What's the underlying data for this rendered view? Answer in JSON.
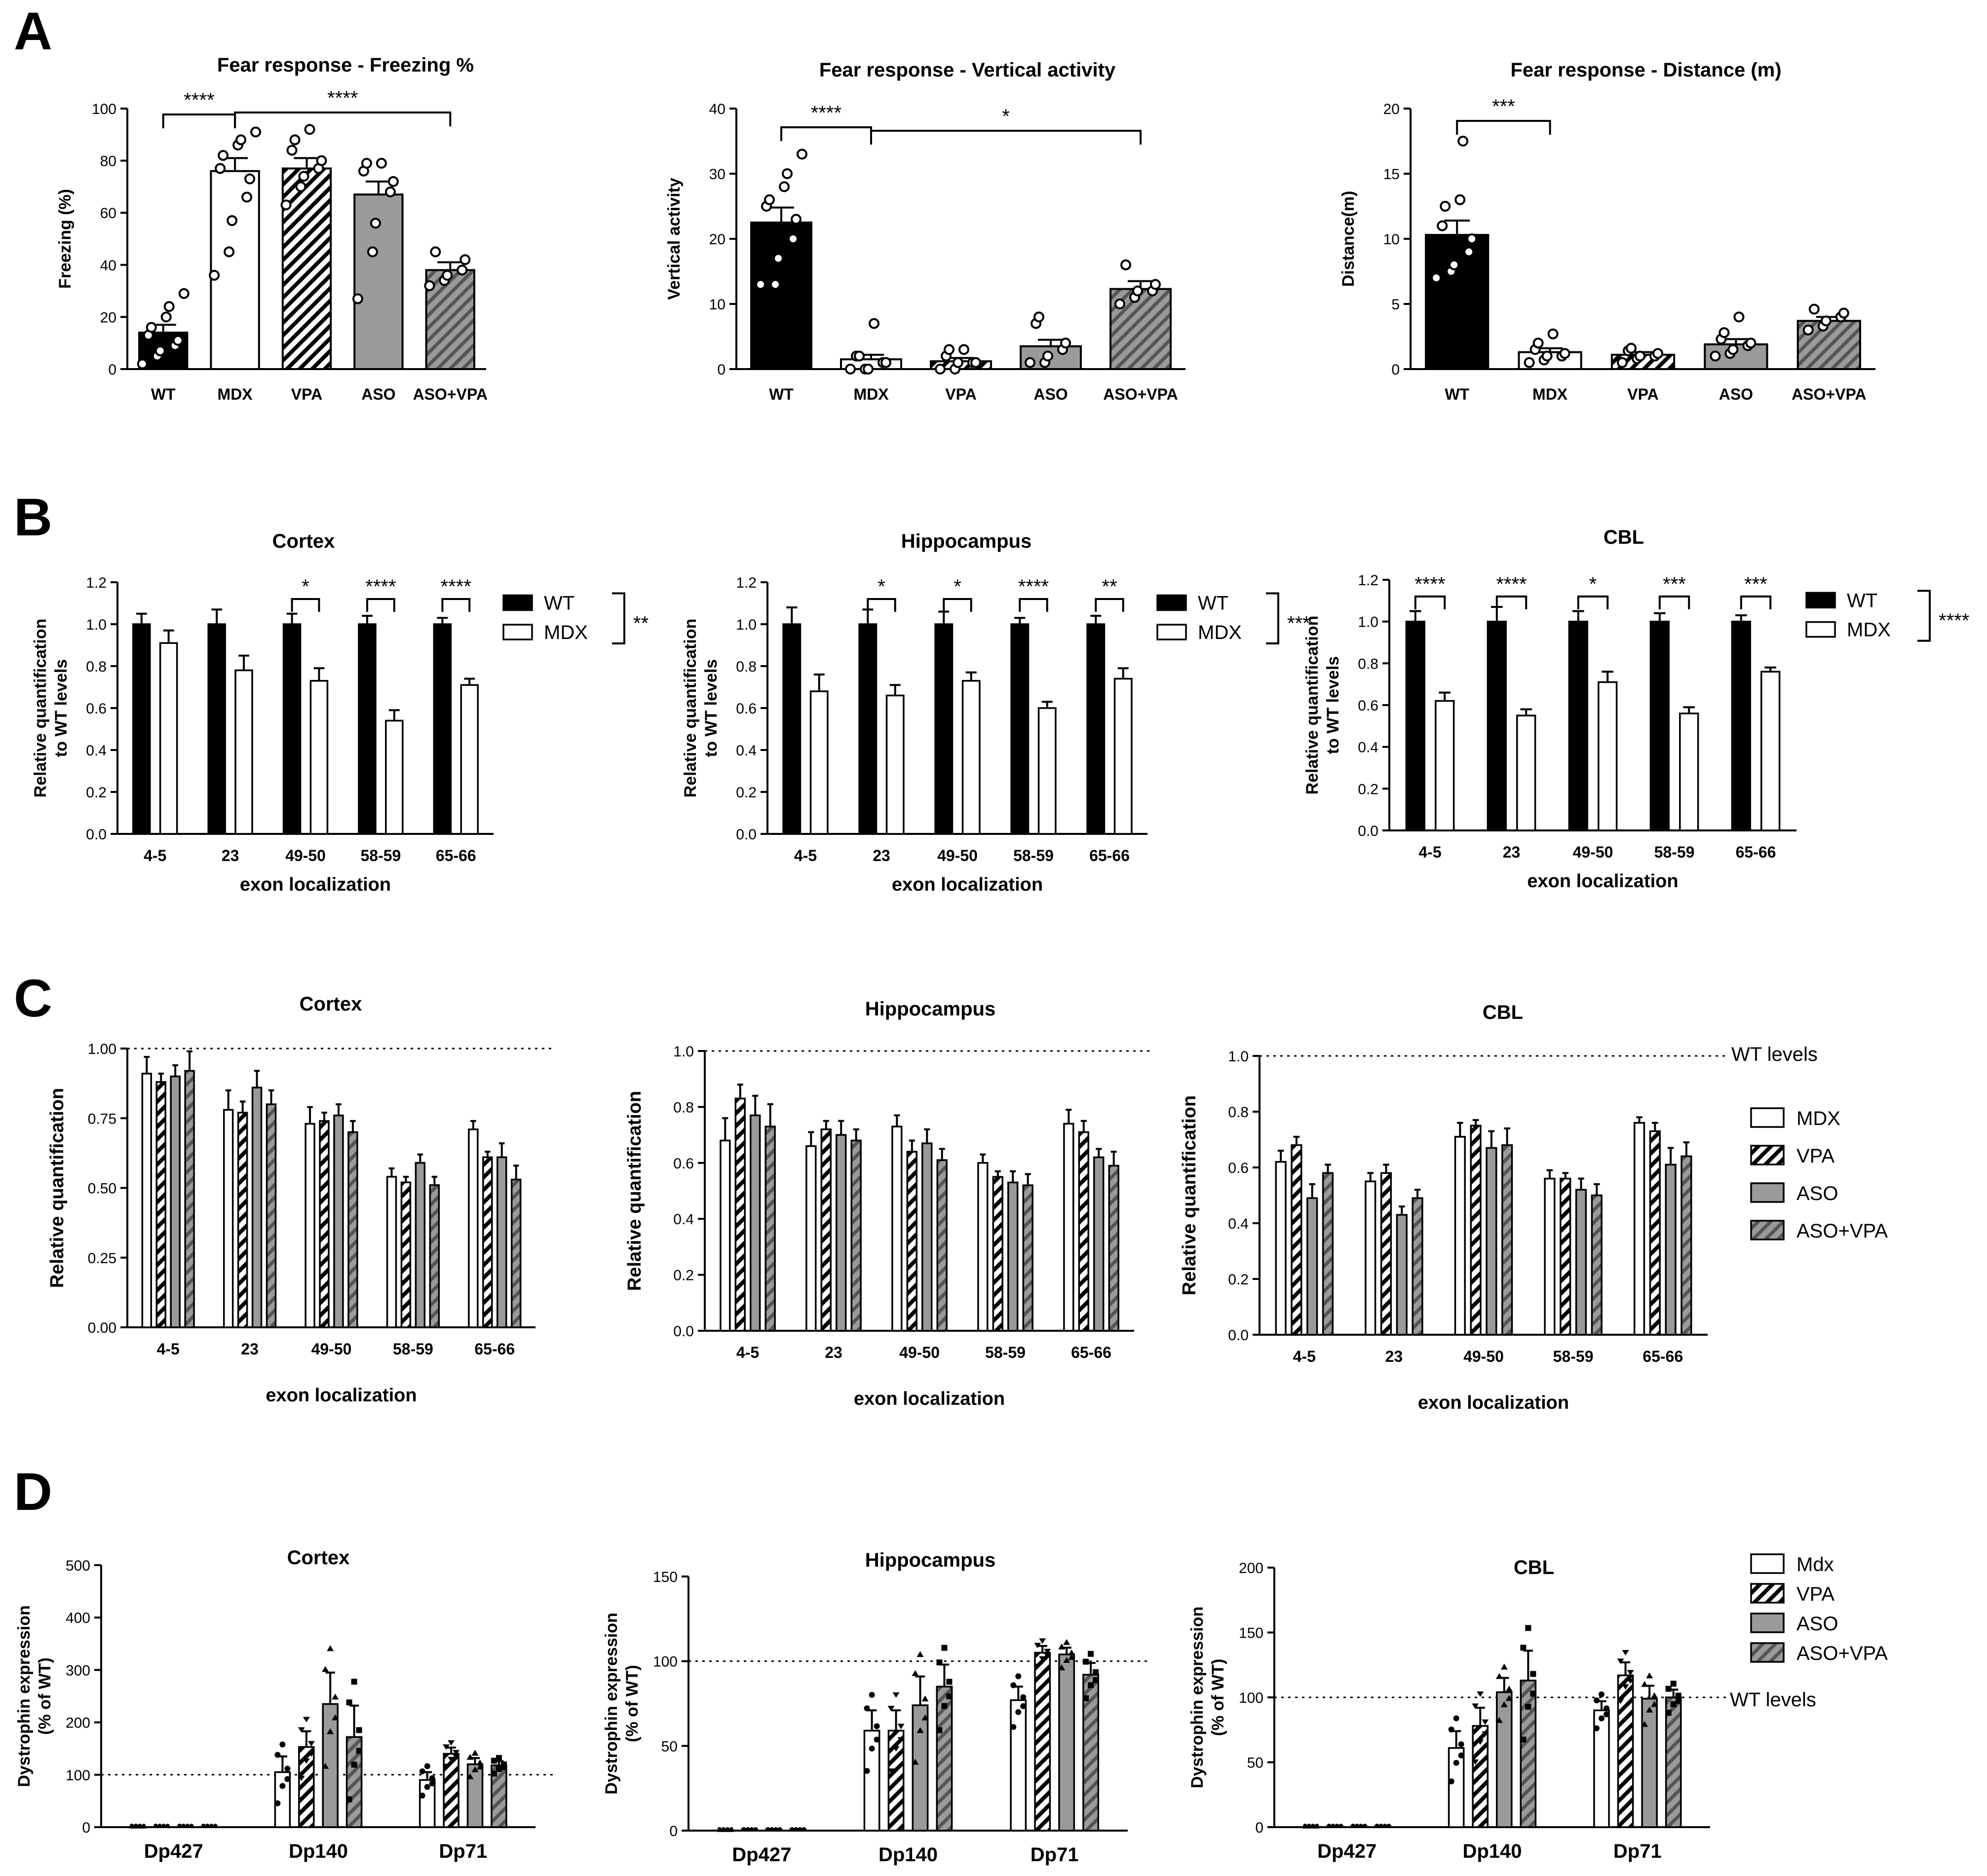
{
  "patterns": {
    "black": "#000000",
    "white": "#ffffff",
    "gray": "#9a9a9a"
  },
  "chart_data": [
    {
      "id": "A1",
      "panel_label": "A",
      "type": "bar",
      "title": "Fear response - Freezing %",
      "ylabel": "Freezing (%)",
      "xlabel": "",
      "categories": [
        "WT",
        "MDX",
        "VPA",
        "ASO",
        "ASO+VPA"
      ],
      "values": [
        14,
        76,
        77,
        67,
        38
      ],
      "errors": [
        3,
        5,
        4,
        5,
        3
      ],
      "styles": [
        "black",
        "white",
        "hatch",
        "gray",
        "grayhatch"
      ],
      "ylim": [
        0,
        100
      ],
      "yticks": [
        "0",
        "20",
        "40",
        "60",
        "80",
        "100"
      ],
      "points": [
        [
          2,
          5,
          7,
          9,
          11,
          13,
          16,
          20,
          24,
          29
        ],
        [
          36,
          45,
          57,
          66,
          73,
          77,
          82,
          86,
          88,
          91
        ],
        [
          63,
          70,
          74,
          77,
          80,
          84,
          88,
          92
        ],
        [
          27,
          45,
          56,
          68,
          72,
          76,
          79,
          79
        ],
        [
          32,
          34,
          36,
          38,
          42,
          45
        ]
      ],
      "significance": [
        {
          "from": 0,
          "to": 1,
          "label": "****"
        },
        {
          "from": 1,
          "to": 4,
          "label": "****"
        }
      ]
    },
    {
      "id": "A2",
      "type": "bar",
      "title": "Fear response - Vertical activity",
      "ylabel": "Vertical activity",
      "xlabel": "",
      "categories": [
        "WT",
        "MDX",
        "VPA",
        "ASO",
        "ASO+VPA"
      ],
      "values": [
        22.5,
        1.5,
        1.2,
        3.5,
        12.3
      ],
      "errors": [
        2.3,
        0.7,
        0.5,
        1.0,
        1.2
      ],
      "styles": [
        "black",
        "white",
        "hatch",
        "gray",
        "grayhatch"
      ],
      "ylim": [
        0,
        40
      ],
      "yticks": [
        "0",
        "10",
        "20",
        "30",
        "40"
      ],
      "points": [
        [
          13,
          13,
          17,
          20,
          23,
          25,
          26,
          28,
          30,
          33
        ],
        [
          0,
          0,
          0,
          1,
          1,
          2,
          2,
          7
        ],
        [
          0,
          0,
          1,
          1,
          1,
          2,
          3,
          3
        ],
        [
          1,
          1,
          2,
          3,
          4,
          7,
          8
        ],
        [
          10,
          11,
          12,
          12,
          13,
          16
        ]
      ],
      "significance": [
        {
          "from": 0,
          "to": 1,
          "label": "****"
        },
        {
          "from": 1,
          "to": 4,
          "label": "*"
        }
      ]
    },
    {
      "id": "A3",
      "type": "bar",
      "title": "Fear response - Distance (m)",
      "ylabel": "Distance(m)",
      "xlabel": "",
      "categories": [
        "WT",
        "MDX",
        "VPA",
        "ASO",
        "ASO+VPA"
      ],
      "values": [
        10.3,
        1.3,
        1.1,
        1.9,
        3.7
      ],
      "errors": [
        1.1,
        0.3,
        0.2,
        0.4,
        0.3
      ],
      "styles": [
        "black",
        "white",
        "hatch",
        "gray",
        "grayhatch"
      ],
      "ylim": [
        0,
        20
      ],
      "yticks": [
        "0",
        "5",
        "10",
        "15",
        "20"
      ],
      "points": [
        [
          7,
          7.5,
          8,
          9,
          10,
          11,
          12.5,
          13,
          17.5
        ],
        [
          0.5,
          0.7,
          1,
          1,
          1.2,
          1.5,
          2,
          2.7
        ],
        [
          0.5,
          0.8,
          1,
          1,
          1.2,
          1.4,
          1.6
        ],
        [
          1,
          1.2,
          1.5,
          1.8,
          2,
          2.3,
          2.8,
          4
        ],
        [
          3,
          3.3,
          3.7,
          4,
          4.3,
          4.6
        ]
      ],
      "significance": [
        {
          "from": 0,
          "to": 1,
          "label": "***"
        }
      ]
    },
    {
      "id": "B1",
      "panel_label": "B",
      "type": "bar",
      "title": "Cortex",
      "ylabel": "Relative quantification to WT levels",
      "xlabel": "exon localization",
      "categories": [
        "4-5",
        "23",
        "49-50",
        "58-59",
        "65-66"
      ],
      "ylim": [
        0,
        1.2
      ],
      "yticks": [
        "0.0",
        "0.2",
        "0.4",
        "0.6",
        "0.8",
        "1.0",
        "1.2"
      ],
      "series": [
        {
          "name": "WT",
          "style": "black",
          "values": [
            1.0,
            1.0,
            1.0,
            1.0,
            1.0
          ],
          "errors": [
            0.05,
            0.07,
            0.05,
            0.04,
            0.03
          ]
        },
        {
          "name": "MDX",
          "style": "white",
          "values": [
            0.91,
            0.78,
            0.73,
            0.54,
            0.71
          ],
          "errors": [
            0.06,
            0.07,
            0.06,
            0.05,
            0.03
          ]
        }
      ],
      "significance": [
        {
          "group": 2,
          "label": "*"
        },
        {
          "group": 3,
          "label": "****"
        },
        {
          "group": 4,
          "label": "****"
        }
      ],
      "overall": "**"
    },
    {
      "id": "B2",
      "type": "bar",
      "title": "Hippocampus",
      "ylabel": "Relative quantification to WT levels",
      "xlabel": "exon localization",
      "categories": [
        "4-5",
        "23",
        "49-50",
        "58-59",
        "65-66"
      ],
      "ylim": [
        0,
        1.2
      ],
      "yticks": [
        "0.0",
        "0.2",
        "0.4",
        "0.6",
        "0.8",
        "1.0",
        "1.2"
      ],
      "series": [
        {
          "name": "WT",
          "style": "black",
          "values": [
            1.0,
            1.0,
            1.0,
            1.0,
            1.0
          ],
          "errors": [
            0.08,
            0.07,
            0.06,
            0.03,
            0.04
          ]
        },
        {
          "name": "MDX",
          "style": "white",
          "values": [
            0.68,
            0.66,
            0.73,
            0.6,
            0.74
          ],
          "errors": [
            0.08,
            0.05,
            0.04,
            0.03,
            0.05
          ]
        }
      ],
      "significance": [
        {
          "group": 1,
          "label": "*"
        },
        {
          "group": 2,
          "label": "*"
        },
        {
          "group": 3,
          "label": "****"
        },
        {
          "group": 4,
          "label": "**"
        }
      ],
      "overall": "***"
    },
    {
      "id": "B3",
      "type": "bar",
      "title": "CBL",
      "ylabel": "Relative quantification to WT levels",
      "xlabel": "exon localization",
      "categories": [
        "4-5",
        "23",
        "49-50",
        "58-59",
        "65-66"
      ],
      "ylim": [
        0,
        1.2
      ],
      "yticks": [
        "0.0",
        "0.2",
        "0.4",
        "0.6",
        "0.8",
        "1.0",
        "1.2"
      ],
      "series": [
        {
          "name": "WT",
          "style": "black",
          "values": [
            1.0,
            1.0,
            1.0,
            1.0,
            1.0
          ],
          "errors": [
            0.05,
            0.07,
            0.05,
            0.04,
            0.03
          ]
        },
        {
          "name": "MDX",
          "style": "white",
          "values": [
            0.62,
            0.55,
            0.71,
            0.56,
            0.76
          ],
          "errors": [
            0.04,
            0.03,
            0.05,
            0.03,
            0.02
          ]
        }
      ],
      "significance": [
        {
          "group": 0,
          "label": "****"
        },
        {
          "group": 1,
          "label": "****"
        },
        {
          "group": 2,
          "label": "*"
        },
        {
          "group": 3,
          "label": "***"
        },
        {
          "group": 4,
          "label": "***"
        }
      ],
      "overall": "****"
    },
    {
      "id": "C1",
      "panel_label": "C",
      "type": "bar",
      "title": "Cortex",
      "ylabel": "Relative quantification",
      "xlabel": "exon localization",
      "categories": [
        "4-5",
        "23",
        "49-50",
        "58-59",
        "65-66"
      ],
      "ylim": [
        0,
        1.0
      ],
      "yticks": [
        "0.00",
        "0.25",
        "0.50",
        "0.75",
        "1.00"
      ],
      "reference": 1.0,
      "series": [
        {
          "name": "MDX",
          "style": "white",
          "values": [
            0.91,
            0.78,
            0.73,
            0.54,
            0.71
          ],
          "errors": [
            0.06,
            0.07,
            0.06,
            0.03,
            0.03
          ]
        },
        {
          "name": "VPA",
          "style": "hatch",
          "values": [
            0.88,
            0.77,
            0.74,
            0.52,
            0.61
          ],
          "errors": [
            0.03,
            0.04,
            0.03,
            0.02,
            0.02
          ]
        },
        {
          "name": "ASO",
          "style": "gray",
          "values": [
            0.9,
            0.86,
            0.76,
            0.59,
            0.61
          ],
          "errors": [
            0.04,
            0.06,
            0.04,
            0.03,
            0.05
          ]
        },
        {
          "name": "ASO+VPA",
          "style": "grayhatch",
          "values": [
            0.92,
            0.8,
            0.7,
            0.51,
            0.53
          ],
          "errors": [
            0.07,
            0.05,
            0.04,
            0.03,
            0.05
          ]
        }
      ]
    },
    {
      "id": "C2",
      "type": "bar",
      "title": "Hippocampus",
      "ylabel": "Relative quantification",
      "xlabel": "exon localization",
      "categories": [
        "4-5",
        "23",
        "49-50",
        "58-59",
        "65-66"
      ],
      "ylim": [
        0,
        1.0
      ],
      "yticks": [
        "0.0",
        "0.2",
        "0.4",
        "0.6",
        "0.8",
        "1.0"
      ],
      "reference": 1.0,
      "series": [
        {
          "name": "MDX",
          "style": "white",
          "values": [
            0.68,
            0.66,
            0.73,
            0.6,
            0.74
          ],
          "errors": [
            0.08,
            0.05,
            0.04,
            0.03,
            0.05
          ]
        },
        {
          "name": "VPA",
          "style": "hatch",
          "values": [
            0.83,
            0.72,
            0.64,
            0.55,
            0.71
          ],
          "errors": [
            0.05,
            0.03,
            0.04,
            0.02,
            0.04
          ]
        },
        {
          "name": "ASO",
          "style": "gray",
          "values": [
            0.77,
            0.7,
            0.67,
            0.53,
            0.62
          ],
          "errors": [
            0.07,
            0.05,
            0.05,
            0.04,
            0.03
          ]
        },
        {
          "name": "ASO+VPA",
          "style": "grayhatch",
          "values": [
            0.73,
            0.68,
            0.61,
            0.52,
            0.59
          ],
          "errors": [
            0.08,
            0.04,
            0.04,
            0.04,
            0.05
          ]
        }
      ]
    },
    {
      "id": "C3",
      "type": "bar",
      "title": "CBL",
      "ylabel": "Relative quantification",
      "xlabel": "exon localization",
      "categories": [
        "4-5",
        "23",
        "49-50",
        "58-59",
        "65-66"
      ],
      "ylim": [
        0,
        1.0
      ],
      "yticks": [
        "0.0",
        "0.2",
        "0.4",
        "0.6",
        "0.8",
        "1.0"
      ],
      "reference": 1.0,
      "series": [
        {
          "name": "MDX",
          "style": "white",
          "values": [
            0.62,
            0.55,
            0.71,
            0.56,
            0.76
          ],
          "errors": [
            0.04,
            0.03,
            0.05,
            0.03,
            0.02
          ]
        },
        {
          "name": "VPA",
          "style": "hatch",
          "values": [
            0.68,
            0.58,
            0.75,
            0.56,
            0.73
          ],
          "errors": [
            0.03,
            0.03,
            0.02,
            0.02,
            0.03
          ]
        },
        {
          "name": "ASO",
          "style": "gray",
          "values": [
            0.49,
            0.43,
            0.67,
            0.52,
            0.61
          ],
          "errors": [
            0.05,
            0.03,
            0.06,
            0.04,
            0.06
          ]
        },
        {
          "name": "ASO+VPA",
          "style": "grayhatch",
          "values": [
            0.58,
            0.49,
            0.68,
            0.5,
            0.64
          ],
          "errors": [
            0.03,
            0.03,
            0.06,
            0.04,
            0.05
          ]
        }
      ]
    },
    {
      "id": "D1",
      "panel_label": "D",
      "type": "bar",
      "title": "Cortex",
      "ylabel": "Dystrophin expression (% of WT)",
      "xlabel": "",
      "categories": [
        "Dp427",
        "Dp140",
        "Dp71"
      ],
      "ylim": [
        0,
        500
      ],
      "yticks": [
        "0",
        "100",
        "200",
        "300",
        "400",
        "500"
      ],
      "reference": 100,
      "series": [
        {
          "name": "Mdx",
          "style": "white",
          "values": [
            0,
            105,
            90
          ],
          "errors": [
            0,
            30,
            15
          ]
        },
        {
          "name": "VPA",
          "style": "hatch",
          "values": [
            1,
            153,
            140
          ],
          "errors": [
            0,
            30,
            12
          ]
        },
        {
          "name": "ASO",
          "style": "gray",
          "values": [
            1,
            235,
            120
          ],
          "errors": [
            0,
            60,
            12
          ]
        },
        {
          "name": "ASO+VPA",
          "style": "grayhatch",
          "values": [
            1,
            172,
            118
          ],
          "errors": [
            0,
            60,
            8
          ]
        }
      ]
    },
    {
      "id": "D2",
      "type": "bar",
      "title": "Hippocampus",
      "ylabel": "Dystrophin expression (% of WT)",
      "xlabel": "",
      "categories": [
        "Dp427",
        "Dp140",
        "Dp71"
      ],
      "ylim": [
        0,
        150
      ],
      "yticks": [
        "0",
        "50",
        "100",
        "150"
      ],
      "reference": 100,
      "series": [
        {
          "name": "Mdx",
          "style": "white",
          "values": [
            0,
            59,
            77
          ],
          "errors": [
            0,
            12,
            8
          ]
        },
        {
          "name": "VPA",
          "style": "hatch",
          "values": [
            1,
            59,
            105
          ],
          "errors": [
            0,
            12,
            4
          ]
        },
        {
          "name": "ASO",
          "style": "gray",
          "values": [
            1,
            74,
            104
          ],
          "errors": [
            0,
            17,
            4
          ]
        },
        {
          "name": "ASO+VPA",
          "style": "grayhatch",
          "values": [
            1,
            85,
            92
          ],
          "errors": [
            0,
            13,
            7
          ]
        }
      ]
    },
    {
      "id": "D3",
      "type": "bar",
      "title": "CBL",
      "ylabel": "Dystrophin expression (% of WT)",
      "xlabel": "",
      "categories": [
        "Dp427",
        "Dp140",
        "Dp71"
      ],
      "ylim": [
        0,
        200
      ],
      "yticks": [
        "0",
        "50",
        "100",
        "150",
        "200"
      ],
      "reference": 100,
      "series": [
        {
          "name": "Mdx",
          "style": "white",
          "values": [
            0,
            61,
            90
          ],
          "errors": [
            0,
            13,
            7
          ]
        },
        {
          "name": "VPA",
          "style": "hatch",
          "values": [
            1,
            78,
            117
          ],
          "errors": [
            0,
            14,
            10
          ]
        },
        {
          "name": "ASO",
          "style": "gray",
          "values": [
            1,
            104,
            99
          ],
          "errors": [
            0,
            11,
            10
          ]
        },
        {
          "name": "ASO+VPA",
          "style": "grayhatch",
          "values": [
            1,
            113,
            100
          ],
          "errors": [
            0,
            23,
            6
          ]
        }
      ]
    }
  ],
  "legends": {
    "C": {
      "ref_label": "WT levels",
      "items": [
        {
          "name": "MDX",
          "style": "white"
        },
        {
          "name": "VPA",
          "style": "hatch"
        },
        {
          "name": "ASO",
          "style": "gray"
        },
        {
          "name": "ASO+VPA",
          "style": "grayhatch"
        }
      ]
    },
    "D": {
      "ref_label": "WT levels",
      "items": [
        {
          "name": "Mdx",
          "style": "white"
        },
        {
          "name": "VPA",
          "style": "hatch"
        },
        {
          "name": "ASO",
          "style": "gray"
        },
        {
          "name": "ASO+VPA",
          "style": "grayhatch"
        }
      ]
    }
  }
}
